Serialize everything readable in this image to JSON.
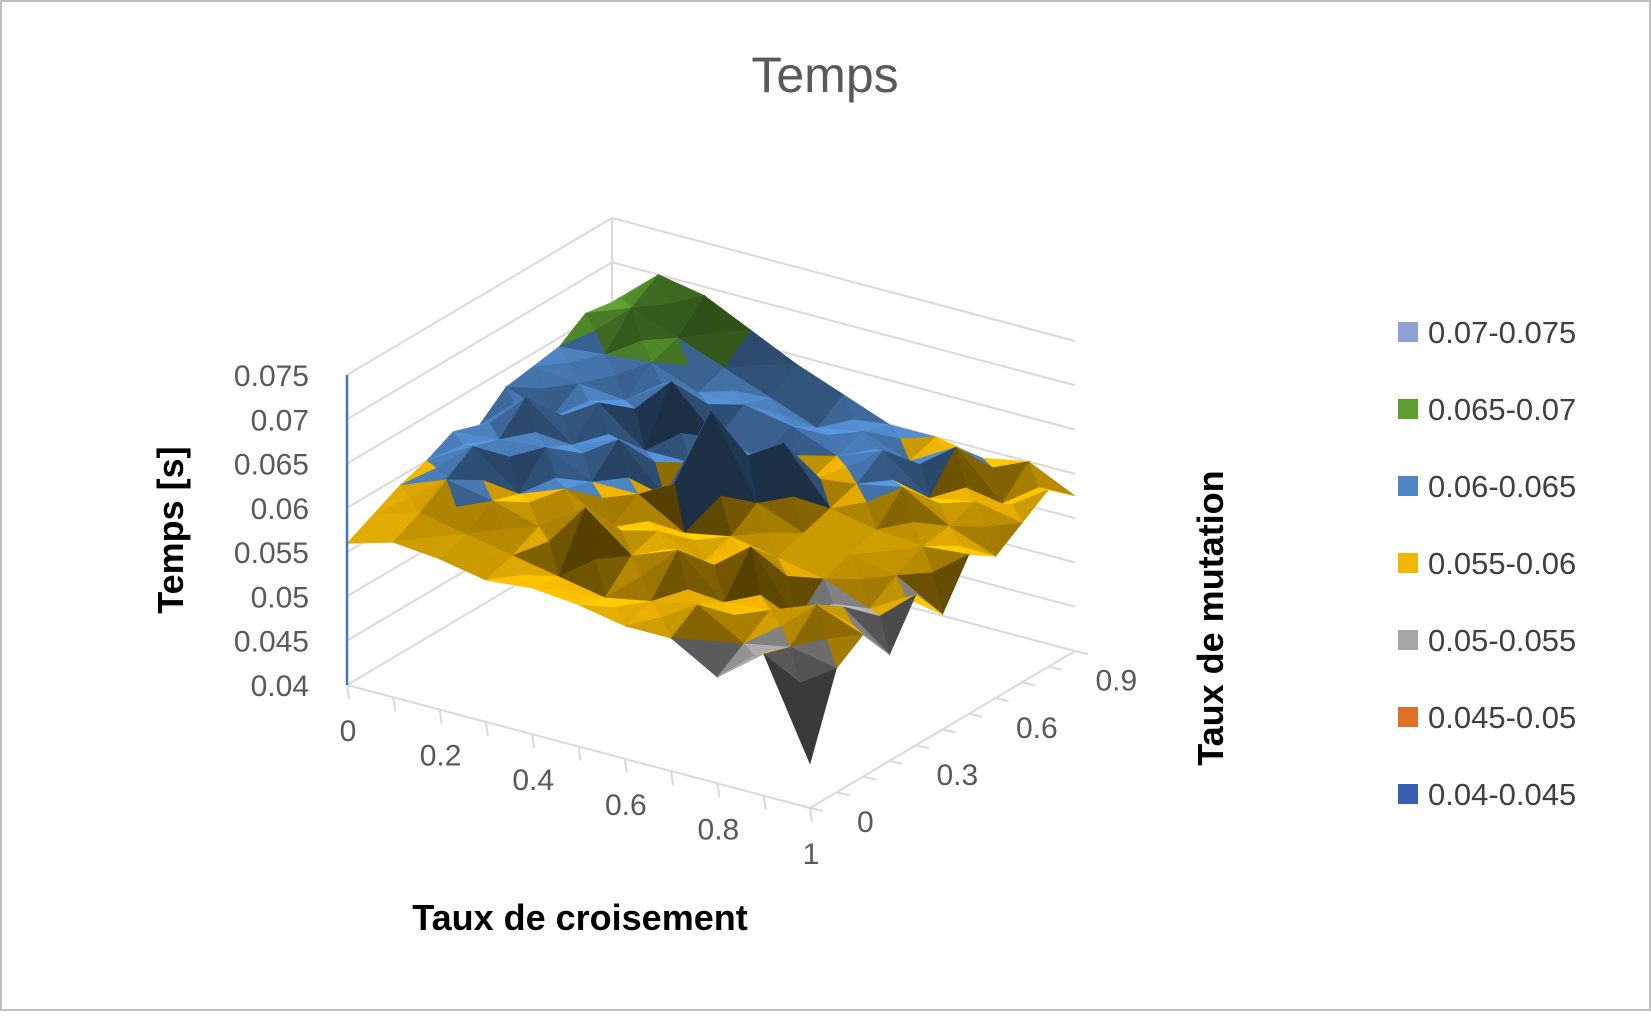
{
  "chart_data": {
    "type": "surface",
    "title": "Temps",
    "xlabel": "Taux de croisement",
    "ylabel": "Taux de mutation",
    "zlabel": "Temps [s]",
    "x_ticks": [
      "0",
      "0.2",
      "0.4",
      "0.6",
      "0.8",
      "1"
    ],
    "y_ticks": [
      "0",
      "0.3",
      "0.6",
      "0.9"
    ],
    "z_ticks": [
      "0.04",
      "0.045",
      "0.05",
      "0.055",
      "0.06",
      "0.065",
      "0.07",
      "0.075"
    ],
    "zlim": [
      0.04,
      0.075
    ],
    "x": [
      0,
      0.1,
      0.2,
      0.3,
      0.4,
      0.5,
      0.6,
      0.7,
      0.8,
      0.9,
      1
    ],
    "y": [
      0,
      0.1,
      0.2,
      0.3,
      0.4,
      0.5,
      0.6,
      0.7,
      0.8,
      0.9,
      1
    ],
    "z": [
      [
        0.056,
        0.0575,
        0.059,
        0.06,
        0.0615,
        0.0605,
        0.063,
        0.0635,
        0.064,
        0.066,
        0.0655
      ],
      [
        0.0575,
        0.059,
        0.061,
        0.063,
        0.062,
        0.065,
        0.061,
        0.063,
        0.0645,
        0.068,
        0.07
      ],
      [
        0.057,
        0.058,
        0.06,
        0.059,
        0.0625,
        0.061,
        0.064,
        0.0625,
        0.065,
        0.066,
        0.069
      ],
      [
        0.056,
        0.057,
        0.0585,
        0.061,
        0.06,
        0.063,
        0.06,
        0.066,
        0.063,
        0.064,
        0.0665
      ],
      [
        0.0565,
        0.056,
        0.062,
        0.058,
        0.06,
        0.058,
        0.06,
        0.061,
        0.063,
        0.062,
        0.064
      ],
      [
        0.056,
        0.055,
        0.058,
        0.059,
        0.057,
        0.069,
        0.061,
        0.06,
        0.062,
        0.06,
        0.062
      ],
      [
        0.055,
        0.056,
        0.06,
        0.057,
        0.058,
        0.06,
        0.065,
        0.059,
        0.06,
        0.061,
        0.06
      ],
      [
        0.055,
        0.057,
        0.0555,
        0.06,
        0.057,
        0.058,
        0.059,
        0.06,
        0.062,
        0.059,
        0.06
      ],
      [
        0.052,
        0.054,
        0.056,
        0.053,
        0.056,
        0.057,
        0.058,
        0.061,
        0.058,
        0.062,
        0.059
      ],
      [
        0.056,
        0.055,
        0.058,
        0.056,
        0.054,
        0.056,
        0.0575,
        0.058,
        0.059,
        0.057,
        0.06
      ],
      [
        0.045,
        0.054,
        0.056,
        0.052,
        0.057,
        0.053,
        0.058,
        0.056,
        0.058,
        0.06,
        0.0575
      ]
    ],
    "legend": {
      "position": "right",
      "entries": [
        {
          "label": "0.07-0.075",
          "color": "#8FA2D4"
        },
        {
          "label": "0.065-0.07",
          "color": "#5C9E31"
        },
        {
          "label": "0.06-0.065",
          "color": "#4F86C6"
        },
        {
          "label": "0.055-0.06",
          "color": "#F2B700"
        },
        {
          "label": "0.05-0.055",
          "color": "#A5A5A5"
        },
        {
          "label": "0.045-0.05",
          "color": "#E07028"
        },
        {
          "label": "0.04-0.045",
          "color": "#3A5FB0"
        }
      ]
    },
    "colors": {
      "grid": "#D9D9D9",
      "z_axis": "#4472C4",
      "frame": "#BFBFBF"
    }
  }
}
